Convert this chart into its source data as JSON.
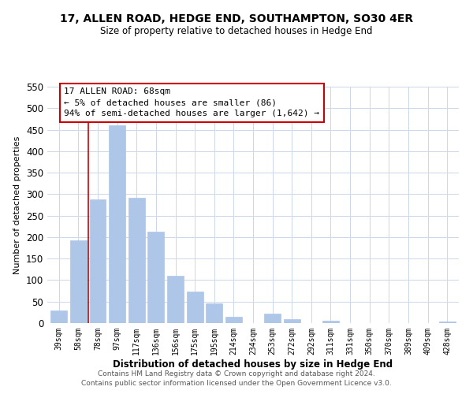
{
  "title": "17, ALLEN ROAD, HEDGE END, SOUTHAMPTON, SO30 4ER",
  "subtitle": "Size of property relative to detached houses in Hedge End",
  "xlabel": "Distribution of detached houses by size in Hedge End",
  "ylabel": "Number of detached properties",
  "bar_labels": [
    "39sqm",
    "58sqm",
    "78sqm",
    "97sqm",
    "117sqm",
    "136sqm",
    "156sqm",
    "175sqm",
    "195sqm",
    "214sqm",
    "234sqm",
    "253sqm",
    "272sqm",
    "292sqm",
    "311sqm",
    "331sqm",
    "350sqm",
    "370sqm",
    "389sqm",
    "409sqm",
    "428sqm"
  ],
  "bar_values": [
    30,
    193,
    287,
    460,
    292,
    212,
    110,
    74,
    46,
    14,
    0,
    22,
    9,
    0,
    5,
    0,
    0,
    0,
    0,
    0,
    3
  ],
  "bar_color": "#aec6e8",
  "bar_edge_color": "#aec6e8",
  "marker_line_color": "#cc0000",
  "annotation_title": "17 ALLEN ROAD: 68sqm",
  "annotation_line1": "← 5% of detached houses are smaller (86)",
  "annotation_line2": "94% of semi-detached houses are larger (1,642) →",
  "annotation_box_color": "#ffffff",
  "annotation_box_edge": "#cc0000",
  "ylim": [
    0,
    550
  ],
  "yticks": [
    0,
    50,
    100,
    150,
    200,
    250,
    300,
    350,
    400,
    450,
    500,
    550
  ],
  "footer1": "Contains HM Land Registry data © Crown copyright and database right 2024.",
  "footer2": "Contains public sector information licensed under the Open Government Licence v3.0.",
  "background_color": "#ffffff",
  "grid_color": "#ccd8e8"
}
